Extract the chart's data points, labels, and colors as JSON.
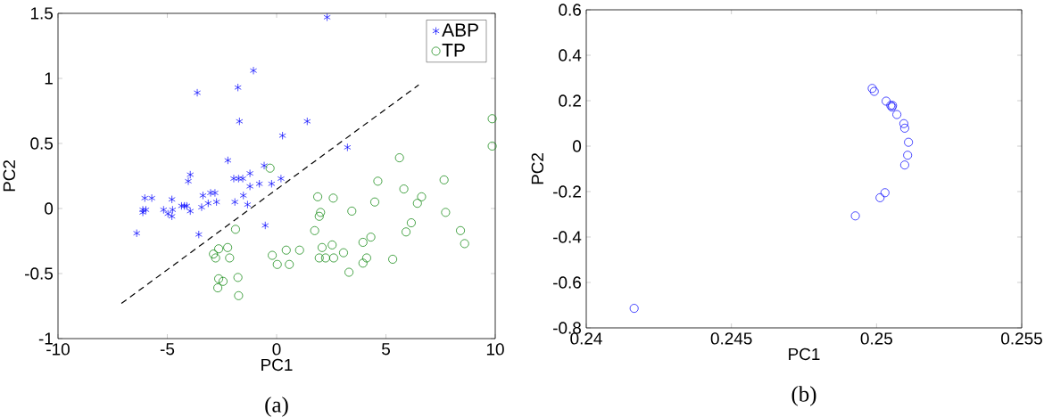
{
  "chart_data": [
    {
      "type": "scatter",
      "xlabel": "PC1",
      "ylabel": "PC2",
      "xlim": [
        -10,
        10
      ],
      "ylim": [
        -1,
        1.5
      ],
      "xticks": [
        -10,
        -5,
        0,
        5,
        10
      ],
      "yticks": [
        -1,
        -0.5,
        0,
        0.5,
        1,
        1.5
      ],
      "legend": "top right",
      "grid": false,
      "annotations": [
        "(a)"
      ],
      "series": [
        {
          "name": "ABP",
          "color": "#0000ff",
          "marker": "cross",
          "x": [
            -1.06,
            -1.77,
            -3.63,
            -1.7,
            0.27,
            -2.23,
            -0.57,
            -3.95,
            -4.04,
            -1.96,
            -1.74,
            -1.55,
            -1.22,
            -1.22,
            -0.79,
            -0.23,
            0.2,
            -3.02,
            -2.82,
            -3.37,
            -6.03,
            -5.71,
            -4.79,
            -1.52,
            -1.91,
            -3.13,
            -2.75,
            -1.33,
            -6.12,
            -5.98,
            -6.12,
            -5.17,
            -4.76,
            -4.97,
            -4.79,
            -4.35,
            -4.22,
            -4.11,
            -3.95,
            -3.43,
            -6.4,
            -3.56,
            -0.52,
            2.31,
            1.4,
            3.24
          ],
          "values": [
            1.06,
            0.93,
            0.89,
            0.67,
            0.56,
            0.37,
            0.33,
            0.26,
            0.21,
            0.23,
            0.23,
            0.23,
            0.27,
            0.17,
            0.19,
            0.19,
            0.23,
            0.12,
            0.12,
            0.1,
            0.08,
            0.08,
            0.07,
            0.1,
            0.05,
            0.04,
            0.05,
            0.03,
            -0.01,
            -0.01,
            -0.03,
            -0.01,
            -0.01,
            -0.04,
            -0.06,
            0.02,
            0.02,
            0.02,
            -0.02,
            0.01,
            -0.19,
            -0.2,
            -0.13,
            1.47,
            0.67,
            0.47
          ]
        },
        {
          "name": "TP",
          "color": "#008000",
          "marker": "circle",
          "x": [
            -0.3,
            -1.88,
            -2.24,
            -2.65,
            -2.89,
            -2.79,
            -2.15,
            -0.2,
            0.03,
            0.44,
            -2.65,
            -2.45,
            -2.69,
            -1.77,
            -1.74,
            9.86,
            9.86,
            5.62,
            4.63,
            7.66,
            5.82,
            1.88,
            2.59,
            4.49,
            6.63,
            6.44,
            3.44,
            7.73,
            2.01,
            1.95,
            6.16,
            1.74,
            5.92,
            8.41,
            8.6,
            4.31,
            3.95,
            1.05,
            2.08,
            2.54,
            1.95,
            2.24,
            2.61,
            3.06,
            4.12,
            3.95,
            5.31,
            3.31,
            0.58
          ],
          "values": [
            0.31,
            -0.16,
            -0.3,
            -0.31,
            -0.35,
            -0.38,
            -0.38,
            -0.36,
            -0.43,
            -0.32,
            -0.54,
            -0.56,
            -0.61,
            -0.53,
            -0.67,
            0.69,
            0.48,
            0.39,
            0.21,
            0.22,
            0.15,
            0.09,
            0.08,
            0.05,
            0.09,
            0.04,
            -0.02,
            -0.03,
            -0.03,
            -0.06,
            -0.11,
            -0.17,
            -0.18,
            -0.17,
            -0.27,
            -0.22,
            -0.26,
            -0.32,
            -0.3,
            -0.28,
            -0.38,
            -0.38,
            -0.38,
            -0.34,
            -0.38,
            -0.42,
            -0.39,
            -0.49,
            -0.43
          ]
        },
        {
          "type": "line",
          "color": "#000000",
          "line_style": "dashed",
          "marker": "none",
          "x": [
            -7.1,
            6.5
          ],
          "values": [
            -0.73,
            0.95
          ]
        }
      ]
    },
    {
      "type": "scatter",
      "xlabel": "PC1",
      "ylabel": "PC2",
      "xlim": [
        0.24,
        0.255
      ],
      "ylim": [
        -0.8,
        0.6
      ],
      "xticks": [
        0.24,
        0.245,
        0.25,
        0.255
      ],
      "yticks": [
        -0.8,
        -0.6,
        -0.4,
        -0.2,
        0,
        0.2,
        0.4,
        0.6
      ],
      "grid": false,
      "annotations": [
        "(b)"
      ],
      "series": [
        {
          "color": "#0000ff",
          "marker": "circle",
          "x": [
            0.24165,
            0.24985,
            0.24992,
            0.25033,
            0.25049,
            0.25053,
            0.25055,
            0.2507,
            0.25094,
            0.25097,
            0.2511,
            0.25107,
            0.25097,
            0.25029,
            0.25012,
            0.24927
          ],
          "values": [
            -0.714,
            0.254,
            0.241,
            0.198,
            0.179,
            0.172,
            0.179,
            0.139,
            0.099,
            0.079,
            0.017,
            -0.04,
            -0.083,
            -0.205,
            -0.227,
            -0.307
          ]
        }
      ]
    }
  ]
}
